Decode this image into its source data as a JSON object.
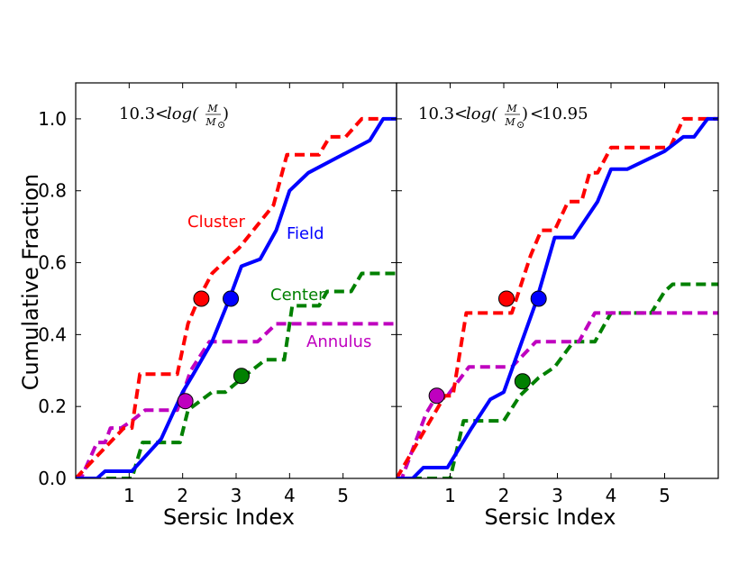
{
  "figure": {
    "ylabel": "Cumulative Fraction"
  },
  "chart_data": [
    {
      "type": "line",
      "panel": "left",
      "annotation": {
        "prefix": "10.3",
        "lt1": "<",
        "func": "log(",
        "num": "M",
        "den": "M",
        "sub": "⊙",
        "close": ")",
        "lt2": "",
        "suffix": ""
      },
      "xlabel": "Sersic Index",
      "ylabel": "Cumulative Fraction",
      "xlim": [
        0,
        6
      ],
      "ylim": [
        0,
        1.1
      ],
      "xticks": [
        1,
        2,
        3,
        4,
        5
      ],
      "yticks": [
        0.0,
        0.2,
        0.4,
        0.6,
        0.8,
        1.0
      ],
      "series": [
        {
          "name": "Cluster",
          "color": "#ff0000",
          "style": "dashed",
          "label_pos": [
            1.65,
            0.7
          ],
          "x": [
            0.0,
            0.9,
            1.05,
            1.2,
            1.9,
            2.1,
            2.3,
            2.55,
            2.9,
            3.05,
            3.7,
            3.95,
            4.3,
            4.55,
            4.75,
            5.05,
            5.35,
            5.75
          ],
          "y": [
            0.0,
            0.14,
            0.14,
            0.29,
            0.29,
            0.43,
            0.5,
            0.57,
            0.62,
            0.64,
            0.76,
            0.9,
            0.9,
            0.9,
            0.95,
            0.95,
            1.0,
            1.0
          ],
          "marker": [
            2.35,
            0.5
          ]
        },
        {
          "name": "Field",
          "color": "#0000ff",
          "style": "solid",
          "label_pos": [
            3.95,
            0.67
          ],
          "x": [
            0.0,
            0.4,
            0.55,
            1.05,
            1.6,
            2.0,
            2.2,
            2.55,
            2.85,
            3.1,
            3.45,
            3.75,
            4.0,
            4.35,
            5.5,
            5.75,
            6.0
          ],
          "y": [
            0.0,
            0.0,
            0.02,
            0.02,
            0.11,
            0.24,
            0.29,
            0.38,
            0.49,
            0.59,
            0.61,
            0.69,
            0.8,
            0.85,
            0.94,
            1.0,
            1.0
          ],
          "marker": [
            2.9,
            0.5
          ]
        },
        {
          "name": "Center",
          "color": "#008000",
          "style": "dashed",
          "label_pos": [
            3.35,
            0.5
          ],
          "x": [
            0.0,
            0.9,
            1.05,
            1.25,
            1.95,
            2.1,
            2.55,
            2.8,
            3.2,
            3.55,
            3.9,
            4.05,
            4.55,
            4.7,
            5.15,
            5.35,
            6.0
          ],
          "y": [
            0.0,
            0.0,
            0.0,
            0.1,
            0.1,
            0.19,
            0.24,
            0.24,
            0.29,
            0.33,
            0.33,
            0.48,
            0.48,
            0.52,
            0.52,
            0.57,
            0.57
          ],
          "marker": [
            3.1,
            0.285
          ]
        },
        {
          "name": "Annulus",
          "color": "#bf00bf",
          "style": "dashed",
          "label_pos": [
            4.5,
            0.37
          ],
          "x": [
            0.0,
            0.1,
            0.4,
            0.55,
            0.65,
            0.85,
            1.05,
            1.3,
            1.9,
            2.15,
            2.5,
            2.8,
            3.4,
            3.75,
            6.0
          ],
          "y": [
            0.0,
            0.0,
            0.1,
            0.1,
            0.14,
            0.14,
            0.16,
            0.19,
            0.19,
            0.3,
            0.38,
            0.38,
            0.38,
            0.43,
            0.43
          ],
          "marker": [
            2.05,
            0.215
          ]
        }
      ]
    },
    {
      "type": "line",
      "panel": "right",
      "annotation": {
        "prefix": "10.3",
        "lt1": "<",
        "func": "log(",
        "num": "M",
        "den": "M",
        "sub": "⊙",
        "close": ")",
        "lt2": "<",
        "suffix": "10.95"
      },
      "xlabel": "Sersic Index",
      "ylabel": "",
      "xlim": [
        0,
        6
      ],
      "ylim": [
        0,
        1.1
      ],
      "xticks": [
        1,
        2,
        3,
        4,
        5
      ],
      "yticks": [
        0.0,
        0.2,
        0.4,
        0.6,
        0.8,
        1.0
      ],
      "series": [
        {
          "name": "Cluster",
          "color": "#ff0000",
          "style": "dashed",
          "x": [
            0.0,
            0.9,
            1.05,
            1.3,
            1.9,
            2.15,
            2.5,
            2.7,
            2.95,
            3.2,
            3.45,
            3.6,
            3.75,
            4.0,
            4.3,
            5.1,
            5.35,
            6.0
          ],
          "y": [
            0.0,
            0.23,
            0.23,
            0.46,
            0.46,
            0.46,
            0.62,
            0.69,
            0.69,
            0.77,
            0.77,
            0.85,
            0.85,
            0.92,
            0.92,
            0.92,
            1.0,
            1.0
          ],
          "marker": [
            2.05,
            0.5
          ]
        },
        {
          "name": "Field",
          "color": "#0000ff",
          "style": "solid",
          "x": [
            0.0,
            0.3,
            0.5,
            0.95,
            1.4,
            1.75,
            2.0,
            2.6,
            2.95,
            3.3,
            3.75,
            4.0,
            4.3,
            5.0,
            5.35,
            5.55,
            5.8,
            6.0
          ],
          "y": [
            0.0,
            0.0,
            0.03,
            0.03,
            0.14,
            0.22,
            0.24,
            0.49,
            0.67,
            0.67,
            0.77,
            0.86,
            0.86,
            0.91,
            0.95,
            0.95,
            1.0,
            1.0
          ],
          "marker": [
            2.65,
            0.5
          ]
        },
        {
          "name": "Center",
          "color": "#008000",
          "style": "dashed",
          "x": [
            0.0,
            1.0,
            1.25,
            1.85,
            2.0,
            2.3,
            2.65,
            2.95,
            3.3,
            3.7,
            4.0,
            4.45,
            4.75,
            5.0,
            5.15,
            6.0
          ],
          "y": [
            0.0,
            0.0,
            0.16,
            0.16,
            0.16,
            0.23,
            0.28,
            0.31,
            0.38,
            0.38,
            0.46,
            0.46,
            0.46,
            0.52,
            0.54,
            0.54
          ],
          "marker": [
            2.35,
            0.27
          ]
        },
        {
          "name": "Annulus",
          "color": "#bf00bf",
          "style": "dashed",
          "x": [
            0.0,
            0.1,
            0.35,
            0.55,
            0.75,
            0.95,
            1.1,
            1.35,
            1.95,
            2.15,
            2.6,
            2.9,
            3.4,
            3.7,
            6.0
          ],
          "y": [
            0.0,
            0.0,
            0.1,
            0.18,
            0.23,
            0.23,
            0.26,
            0.31,
            0.31,
            0.31,
            0.38,
            0.38,
            0.38,
            0.46,
            0.46
          ],
          "marker": [
            0.75,
            0.23
          ]
        }
      ]
    }
  ]
}
